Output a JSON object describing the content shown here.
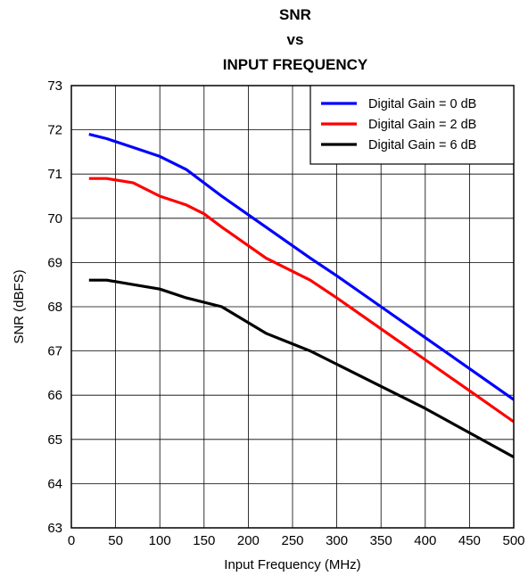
{
  "chart_data": {
    "type": "line",
    "title": [
      "SNR",
      "vs",
      "INPUT FREQUENCY"
    ],
    "xlabel": "Input Frequency (MHz)",
    "ylabel": "SNR (dBFS)",
    "xlim": [
      0,
      500
    ],
    "ylim": [
      63,
      73
    ],
    "xticks": [
      0,
      50,
      100,
      150,
      200,
      250,
      300,
      350,
      400,
      450,
      500
    ],
    "yticks": [
      63,
      64,
      65,
      66,
      67,
      68,
      69,
      70,
      71,
      72,
      73
    ],
    "grid": true,
    "legend_position": "top-right",
    "series": [
      {
        "name": "Digital Gain = 0 dB",
        "color": "#0000ff",
        "x": [
          20,
          40,
          70,
          100,
          130,
          170,
          220,
          270,
          300,
          350,
          400,
          450,
          500
        ],
        "y": [
          71.9,
          71.8,
          71.6,
          71.4,
          71.1,
          70.5,
          69.8,
          69.1,
          68.7,
          68.0,
          67.3,
          66.6,
          65.9
        ]
      },
      {
        "name": "Digital Gain = 2 dB",
        "color": "#ff0000",
        "x": [
          20,
          40,
          70,
          100,
          130,
          150,
          170,
          220,
          270,
          300,
          350,
          400,
          450,
          500
        ],
        "y": [
          70.9,
          70.9,
          70.8,
          70.5,
          70.3,
          70.1,
          69.8,
          69.1,
          68.6,
          68.2,
          67.5,
          66.8,
          66.1,
          65.4
        ]
      },
      {
        "name": "Digital Gain = 6 dB",
        "color": "#000000",
        "x": [
          20,
          40,
          70,
          100,
          130,
          170,
          220,
          270,
          300,
          350,
          400,
          450,
          500
        ],
        "y": [
          68.6,
          68.6,
          68.5,
          68.4,
          68.2,
          68.0,
          67.4,
          67.0,
          66.7,
          66.2,
          65.7,
          65.15,
          64.6
        ]
      }
    ]
  }
}
